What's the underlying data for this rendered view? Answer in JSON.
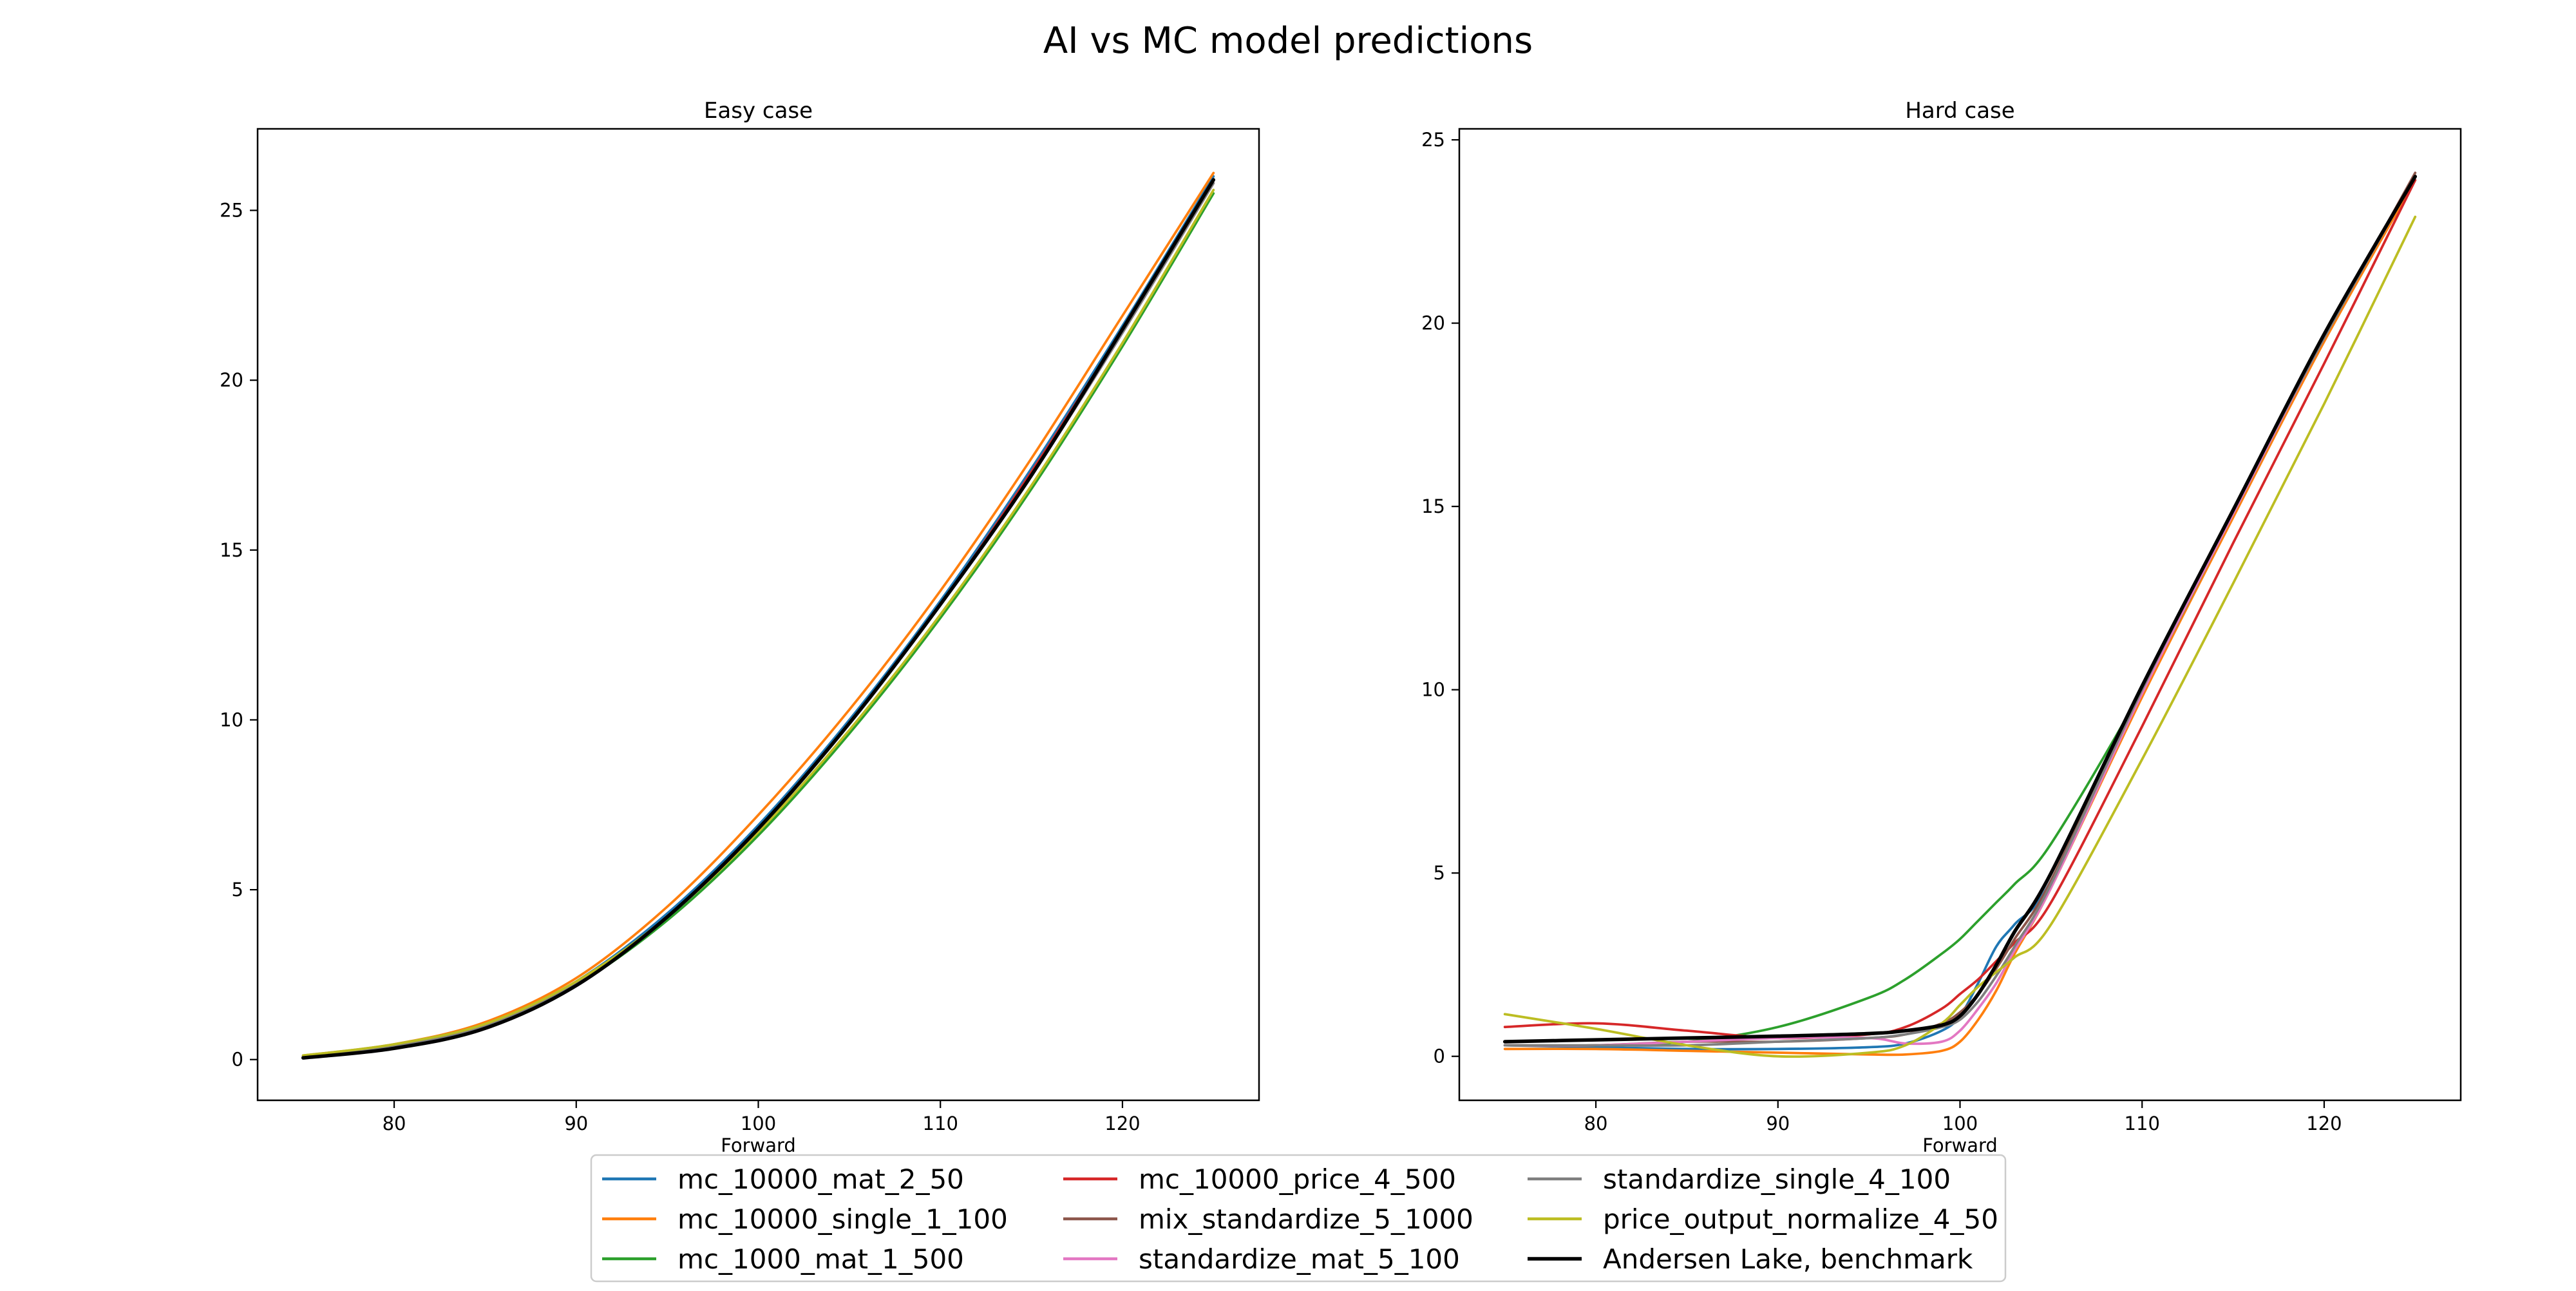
{
  "figure": {
    "title": "AI vs MC model predictions"
  },
  "chart_data": [
    {
      "type": "line",
      "title": "Easy case",
      "xlabel": "Forward",
      "ylabel": "",
      "xlim": [
        72.5,
        127.5
      ],
      "ylim": [
        -1.2,
        27.4
      ],
      "xticks": [
        80,
        90,
        100,
        110,
        120
      ],
      "yticks": [
        0,
        5,
        10,
        15,
        20,
        25
      ],
      "grid": false,
      "x": [
        75,
        80,
        85,
        90,
        95,
        100,
        105,
        110,
        115,
        120,
        125
      ],
      "series": [
        {
          "name": "mc_10000_mat_2_50",
          "color": "#1f77b4",
          "values": [
            0.1,
            0.4,
            1.0,
            2.3,
            4.3,
            6.9,
            10.0,
            13.5,
            17.4,
            21.6,
            26.0
          ]
        },
        {
          "name": "mc_10000_single_1_100",
          "color": "#ff7f0e",
          "values": [
            0.12,
            0.45,
            1.1,
            2.4,
            4.5,
            7.2,
            10.3,
            13.8,
            17.7,
            21.9,
            26.1
          ]
        },
        {
          "name": "mc_1000_mat_1_500",
          "color": "#2ca02c",
          "values": [
            0.1,
            0.4,
            1.0,
            2.2,
            4.1,
            6.6,
            9.6,
            13.0,
            16.8,
            21.0,
            25.5
          ]
        },
        {
          "name": "mc_10000_price_4_500",
          "color": "#d62728",
          "values": [
            0.08,
            0.35,
            0.95,
            2.2,
            4.2,
            6.8,
            9.9,
            13.4,
            17.3,
            21.5,
            25.9
          ]
        },
        {
          "name": "mix_standardize_5_1000",
          "color": "#8c564b",
          "values": [
            0.08,
            0.35,
            0.95,
            2.2,
            4.2,
            6.8,
            9.9,
            13.4,
            17.2,
            21.4,
            25.9
          ]
        },
        {
          "name": "standardize_mat_5_100",
          "color": "#e377c2",
          "values": [
            0.1,
            0.4,
            1.0,
            2.25,
            4.2,
            6.8,
            9.9,
            13.4,
            17.2,
            21.4,
            25.8
          ]
        },
        {
          "name": "standardize_single_4_100",
          "color": "#7f7f7f",
          "values": [
            0.1,
            0.4,
            1.0,
            2.25,
            4.2,
            6.8,
            9.9,
            13.4,
            17.2,
            21.4,
            25.8
          ]
        },
        {
          "name": "price_output_normalize_4_50",
          "color": "#bcbd22",
          "values": [
            0.12,
            0.45,
            1.05,
            2.3,
            4.2,
            6.7,
            9.7,
            13.1,
            16.9,
            21.1,
            25.6
          ]
        },
        {
          "name": "Andersen Lake, benchmark",
          "color": "#000000",
          "values": [
            0.05,
            0.33,
            0.92,
            2.18,
            4.2,
            6.8,
            9.9,
            13.4,
            17.2,
            21.5,
            25.9
          ]
        }
      ]
    },
    {
      "type": "line",
      "title": "Hard case",
      "xlabel": "Forward",
      "ylabel": "",
      "xlim": [
        72.5,
        127.5
      ],
      "ylim": [
        -1.2,
        25.3
      ],
      "xticks": [
        80,
        90,
        100,
        110,
        120
      ],
      "yticks": [
        0,
        5,
        10,
        15,
        20,
        25
      ],
      "grid": false,
      "x": [
        75,
        80,
        85,
        90,
        95,
        97,
        99,
        100,
        101,
        102,
        103,
        105,
        110,
        115,
        120,
        125
      ],
      "series": [
        {
          "name": "mc_10000_mat_2_50",
          "color": "#1f77b4",
          "values": [
            0.3,
            0.25,
            0.2,
            0.2,
            0.25,
            0.35,
            0.7,
            1.1,
            2.0,
            3.0,
            3.6,
            4.8,
            10.0,
            14.8,
            19.6,
            24.0
          ]
        },
        {
          "name": "mc_10000_single_1_100",
          "color": "#ff7f0e",
          "values": [
            0.2,
            0.2,
            0.15,
            0.1,
            0.05,
            0.05,
            0.15,
            0.4,
            1.0,
            1.8,
            2.8,
            4.6,
            9.8,
            14.7,
            19.5,
            23.9
          ]
        },
        {
          "name": "mc_1000_mat_1_500",
          "color": "#2ca02c",
          "values": [
            0.3,
            0.3,
            0.4,
            0.8,
            1.6,
            2.1,
            2.8,
            3.2,
            3.7,
            4.2,
            4.7,
            5.8,
            10.0,
            14.8,
            19.6,
            24.0
          ]
        },
        {
          "name": "mc_10000_price_4_500",
          "color": "#d62728",
          "values": [
            0.8,
            0.9,
            0.7,
            0.5,
            0.6,
            0.8,
            1.3,
            1.7,
            2.1,
            2.6,
            3.1,
            4.2,
            9.0,
            14.0,
            18.9,
            23.9
          ]
        },
        {
          "name": "mix_standardize_5_1000",
          "color": "#8c564b",
          "values": [
            0.3,
            0.3,
            0.4,
            0.4,
            0.5,
            0.6,
            0.9,
            1.2,
            1.7,
            2.4,
            3.2,
            4.8,
            10.0,
            14.9,
            19.6,
            24.1
          ]
        },
        {
          "name": "standardize_mat_5_100",
          "color": "#e377c2",
          "values": [
            0.3,
            0.3,
            0.4,
            0.5,
            0.5,
            0.35,
            0.4,
            0.7,
            1.3,
            2.0,
            2.9,
            4.6,
            9.9,
            14.8,
            19.6,
            24.0
          ]
        },
        {
          "name": "standardize_single_4_100",
          "color": "#7f7f7f",
          "values": [
            0.3,
            0.3,
            0.3,
            0.4,
            0.5,
            0.6,
            0.8,
            1.0,
            1.5,
            2.2,
            3.0,
            4.7,
            10.0,
            14.9,
            19.6,
            24.0
          ]
        },
        {
          "name": "price_output_normalize_4_50",
          "color": "#bcbd22",
          "values": [
            1.15,
            0.75,
            0.3,
            0.0,
            0.1,
            0.3,
            0.9,
            1.4,
            1.9,
            2.3,
            2.7,
            3.6,
            8.1,
            12.9,
            17.8,
            22.9
          ]
        },
        {
          "name": "Andersen Lake, benchmark",
          "color": "#000000",
          "values": [
            0.4,
            0.45,
            0.5,
            0.55,
            0.62,
            0.7,
            0.85,
            1.1,
            1.7,
            2.5,
            3.4,
            5.0,
            10.1,
            14.9,
            19.7,
            24.0
          ]
        }
      ]
    }
  ]
}
